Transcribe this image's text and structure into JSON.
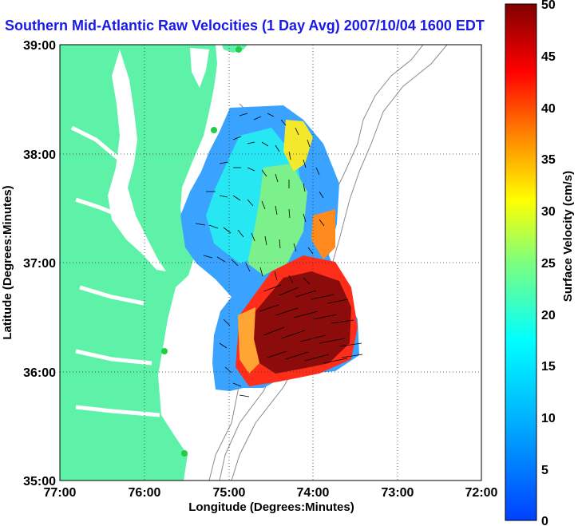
{
  "title": "Southern Mid-Atlantic Raw Velocities (1 Day Avg) 2007/10/04 1600 EDT",
  "map": {
    "xlabel": "Longitude (Degrees:Minutes)",
    "ylabel": "Latitude (Degrees:Minutes)",
    "x_ticks": [
      "77:00",
      "76:00",
      "75:00",
      "74:00",
      "73:00",
      "72:00"
    ],
    "y_ticks": [
      "39:00",
      "38:00",
      "37:00",
      "36:00",
      "35:00"
    ],
    "xlim": [
      -77,
      -72
    ],
    "ylim": [
      35,
      39
    ],
    "grid": "dotted",
    "land_color": "#5ef2a8",
    "water_color": "#ffffff"
  },
  "colorbar": {
    "label": "Surface Velocity (cm/s)",
    "ticks": [
      "50",
      "45",
      "40",
      "35",
      "30",
      "25",
      "20",
      "15",
      "10",
      "5",
      "0"
    ],
    "min": 0,
    "max": 50,
    "colormap": "jet"
  }
}
